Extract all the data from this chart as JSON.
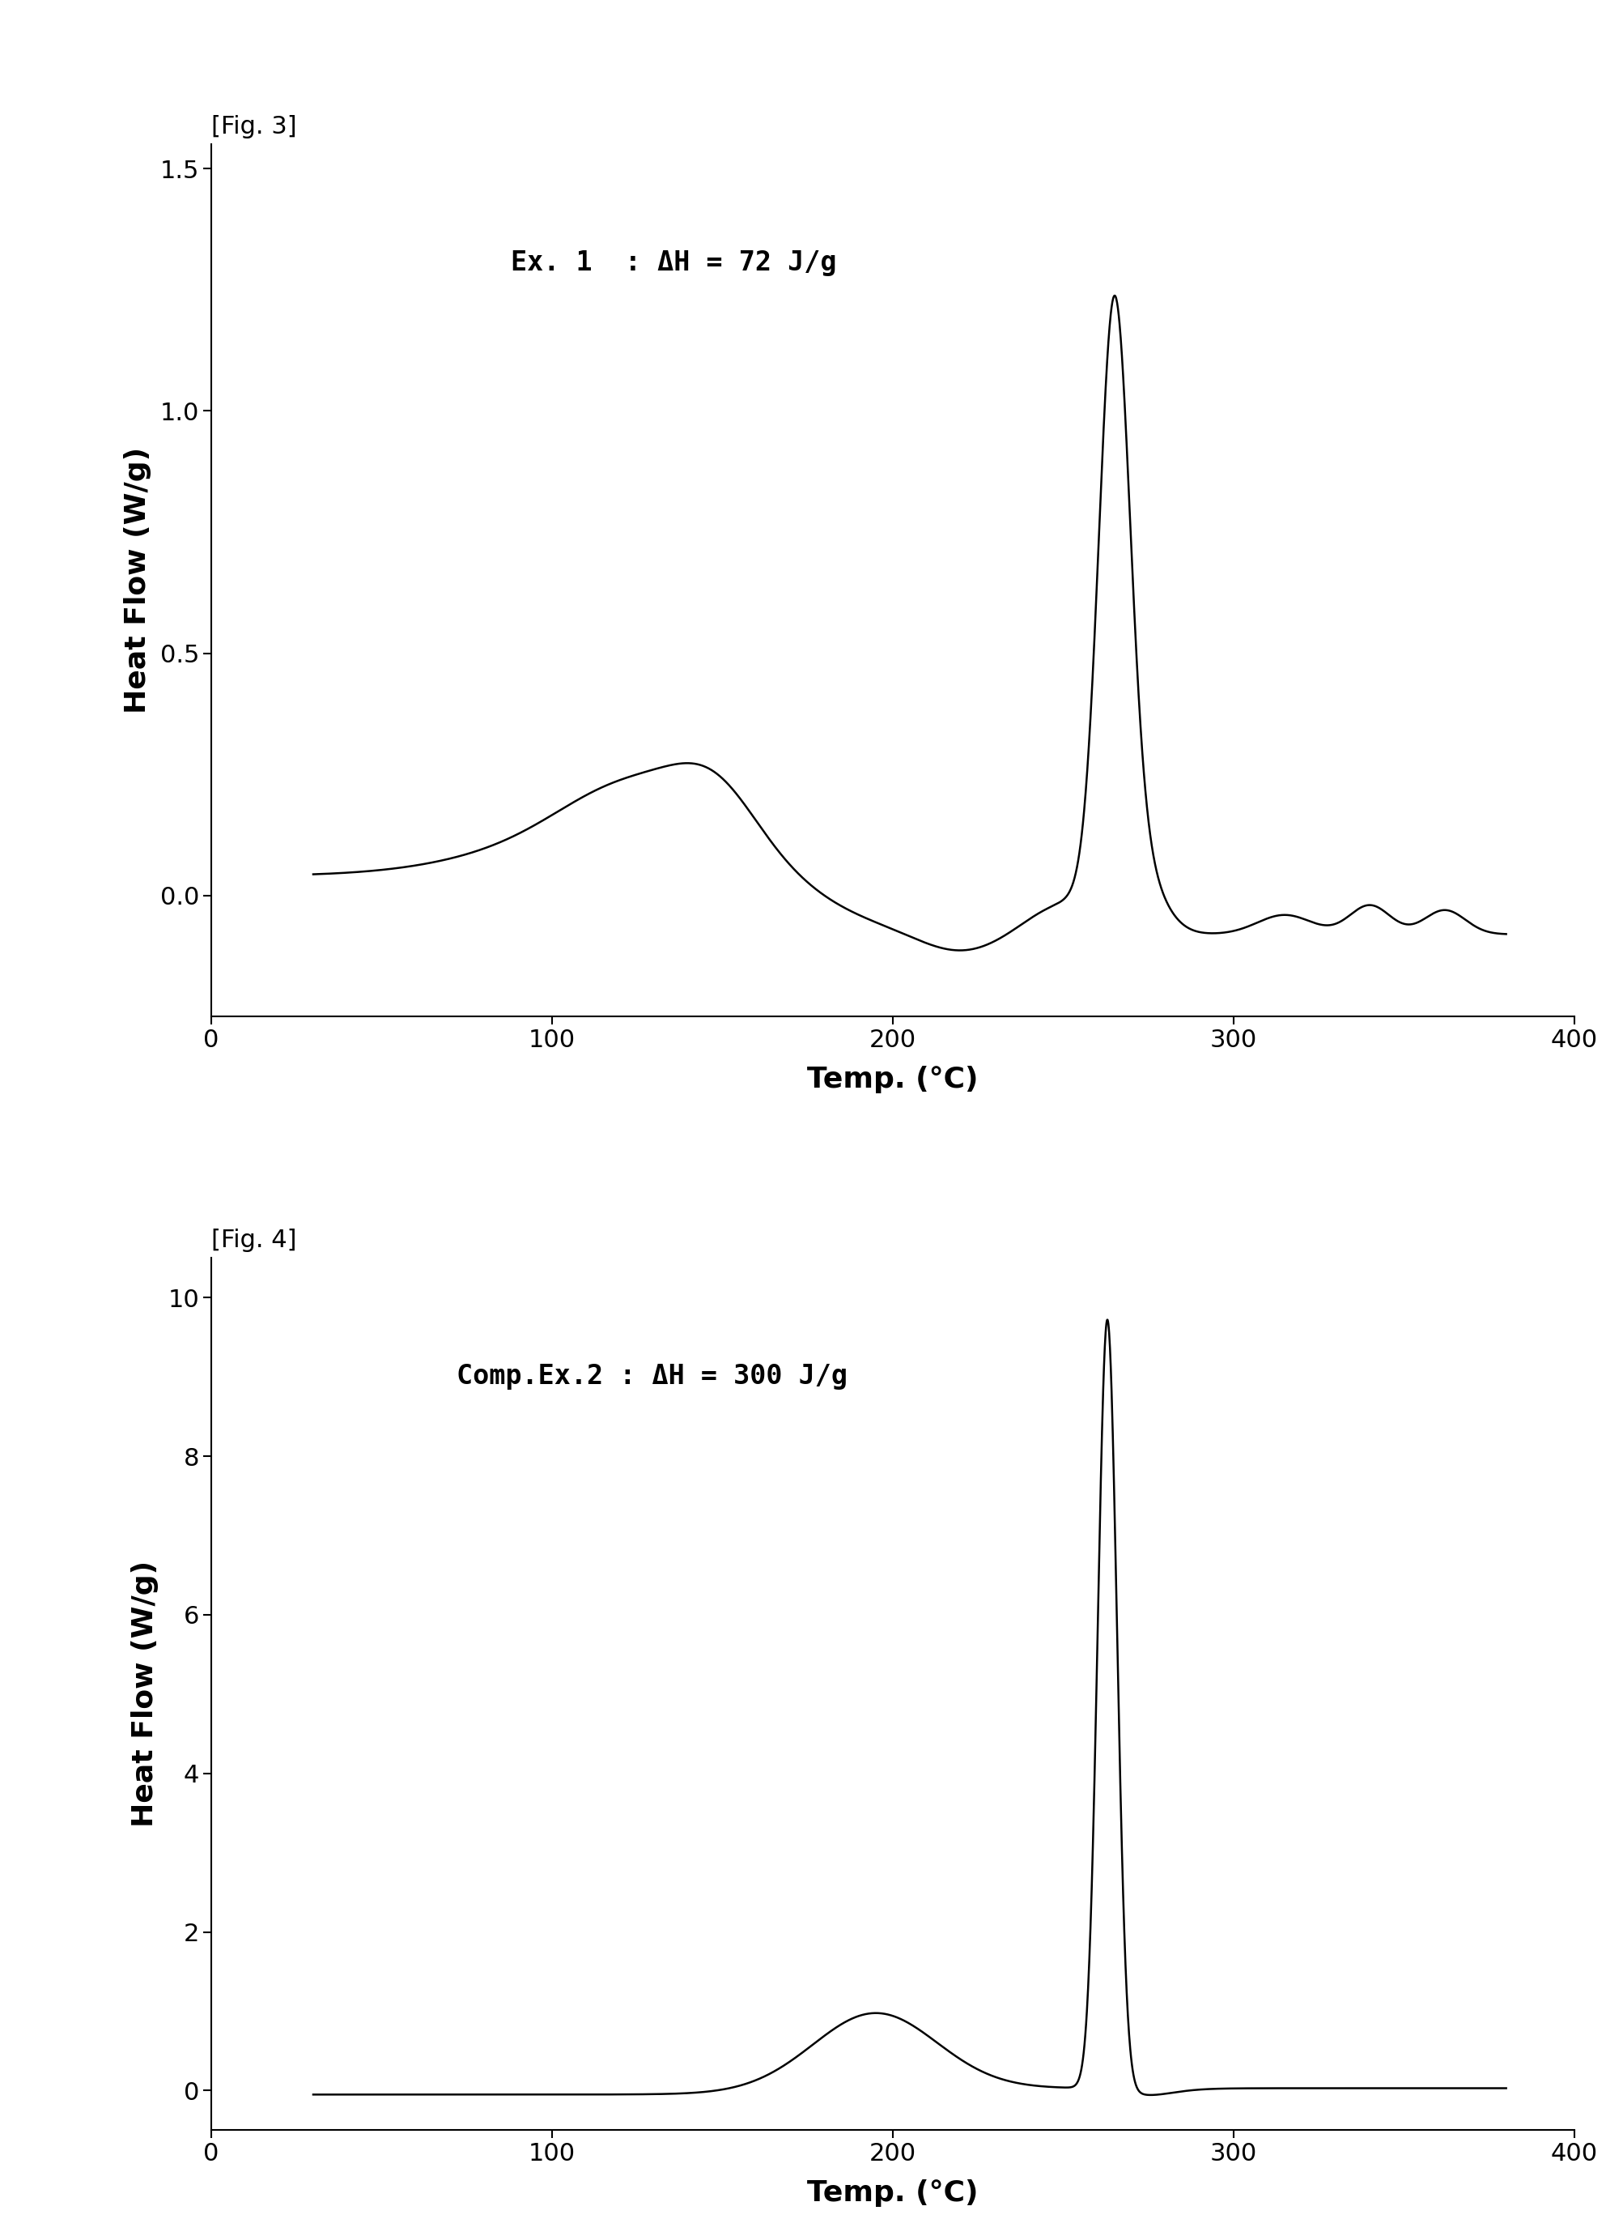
{
  "fig3_label": "[Fig. 3]",
  "fig4_label": "[Fig. 4]",
  "fig3_annotation": "Ex. 1  : ΔH = 72 J/g",
  "fig4_annotation": "Comp.Ex.2 : ΔH = 300 J/g",
  "fig3_xlabel": "Temp. (°C)",
  "fig4_xlabel": "Temp. (°C)",
  "ylabel": "Heat Flow (W/g)",
  "fig3_xlim": [
    0,
    400
  ],
  "fig3_ylim": [
    -0.25,
    1.55
  ],
  "fig4_xlim": [
    0,
    400
  ],
  "fig4_ylim": [
    -0.5,
    10.5
  ],
  "fig3_yticks": [
    0.0,
    0.5,
    1.0,
    1.5
  ],
  "fig4_yticks": [
    0,
    2,
    4,
    6,
    8,
    10
  ],
  "xticks": [
    0,
    100,
    200,
    300,
    400
  ],
  "background_color": "#ffffff",
  "line_color": "#000000",
  "fontsize_label": 26,
  "fontsize_tick": 22,
  "fontsize_annotation": 24,
  "fontsize_figlabel": 22
}
